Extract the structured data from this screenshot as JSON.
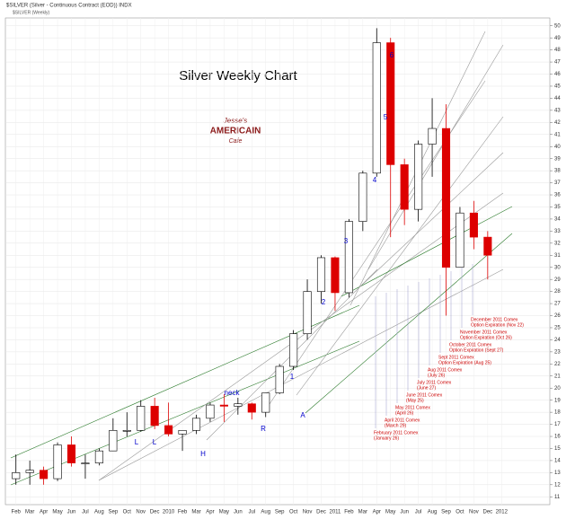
{
  "chart_data": {
    "type": "candlestick",
    "header": "$SILVER (Silver - Continuous Contract (EOD)) INDX",
    "legend_label": "$SILVER (Weekly)",
    "title": "Silver Weekly Chart",
    "logo": [
      "Jesse's",
      "AMERICAIN",
      "Cafe"
    ],
    "categories": [
      "Feb",
      "Mar",
      "Apr",
      "May",
      "Jun",
      "Jul",
      "Aug",
      "Sep",
      "Oct",
      "Nov",
      "Dec",
      "2010",
      "Feb",
      "Mar",
      "Apr",
      "May",
      "Jun",
      "Jul",
      "Aug",
      "Sep",
      "Oct",
      "Nov",
      "Dec",
      "2011",
      "Feb",
      "Mar",
      "Apr",
      "May",
      "Jun",
      "Jul",
      "Aug",
      "Sep",
      "Oct",
      "Nov",
      "Dec",
      "2012"
    ],
    "open": [
      12.5,
      13,
      13.2,
      12.5,
      15.3,
      13.8,
      13.8,
      14.8,
      16.5,
      16.5,
      18.5,
      16.9,
      16.2,
      16.5,
      17.5,
      18.6,
      18.5,
      18.7,
      18,
      19.6,
      21.8,
      24.5,
      28,
      30.8,
      27.9,
      33.8,
      37.8,
      48.6,
      38.5,
      34.8,
      40.2,
      41.5,
      30,
      34.5,
      32.5,
      null
    ],
    "high": [
      14.5,
      14,
      13.5,
      15.5,
      16,
      14.5,
      15,
      17.5,
      18,
      19,
      19.2,
      18.8,
      16.5,
      17.8,
      18.8,
      19.5,
      19.2,
      18.8,
      19.6,
      22,
      24.8,
      29,
      31,
      30.9,
      34,
      38,
      49.8,
      49,
      39,
      40.5,
      44,
      43.5,
      35,
      35.5,
      33,
      null
    ],
    "low": [
      12,
      12,
      12,
      12.3,
      13.5,
      12.5,
      13.6,
      14.8,
      16,
      16.4,
      16.6,
      16,
      14.8,
      16.2,
      17.2,
      17.2,
      17.8,
      17.4,
      17.6,
      19.5,
      21.5,
      24,
      27,
      26.4,
      27.5,
      33,
      37.5,
      32.5,
      33.5,
      33.8,
      37.5,
      26,
      30,
      31.5,
      29,
      null
    ],
    "close": [
      13,
      13.2,
      12.5,
      15.3,
      13.8,
      13.8,
      14.8,
      16.5,
      16.5,
      18.5,
      16.9,
      16.2,
      16.5,
      17.5,
      18.6,
      18.5,
      18.7,
      18,
      19.6,
      21.8,
      24.5,
      28,
      30.8,
      27.9,
      33.8,
      37.8,
      48.6,
      38.5,
      34.8,
      40.2,
      41.5,
      30,
      34.5,
      32.5,
      31,
      null
    ],
    "up_color": "#ffffff",
    "down_color": "#dd0000",
    "ylim": [
      10.5,
      50.5
    ],
    "yticks": [
      11,
      12,
      13,
      14,
      15,
      16,
      17,
      18,
      19,
      20,
      21,
      22,
      23,
      24,
      25,
      26,
      27,
      28,
      29,
      30,
      31,
      32,
      33,
      34,
      35,
      36,
      37,
      38,
      39,
      40,
      41,
      42,
      43,
      44,
      45,
      46,
      47,
      48,
      49,
      50
    ],
    "grid": true,
    "annotations": [
      "1",
      "2",
      "3",
      "4",
      "5",
      "6",
      "neck",
      "L",
      "L",
      "H",
      "R",
      "A"
    ],
    "comex_labels": [
      [
        "February 2011 Comex",
        "(January 26)"
      ],
      [
        "April 2011 Comex",
        "(March 29)"
      ],
      [
        "May 2011 Comex",
        "(April 26)"
      ],
      [
        "June 2011 Comex",
        "(May 25)"
      ],
      [
        "July 2011 Comex",
        "(June 27)"
      ],
      [
        "Aug 2011 Comex",
        "(July 26)"
      ],
      [
        "Sept 2011 Comex",
        "Option Expiration (Aug 25)"
      ],
      [
        "October 2011 Comex",
        "Option Expiration (Sept 27)"
      ],
      [
        "November 2011 Comex",
        "Option Expiration (Oct 26)"
      ],
      [
        "December 2011 Comex",
        "Option Expiration (Nov 22)"
      ]
    ]
  }
}
